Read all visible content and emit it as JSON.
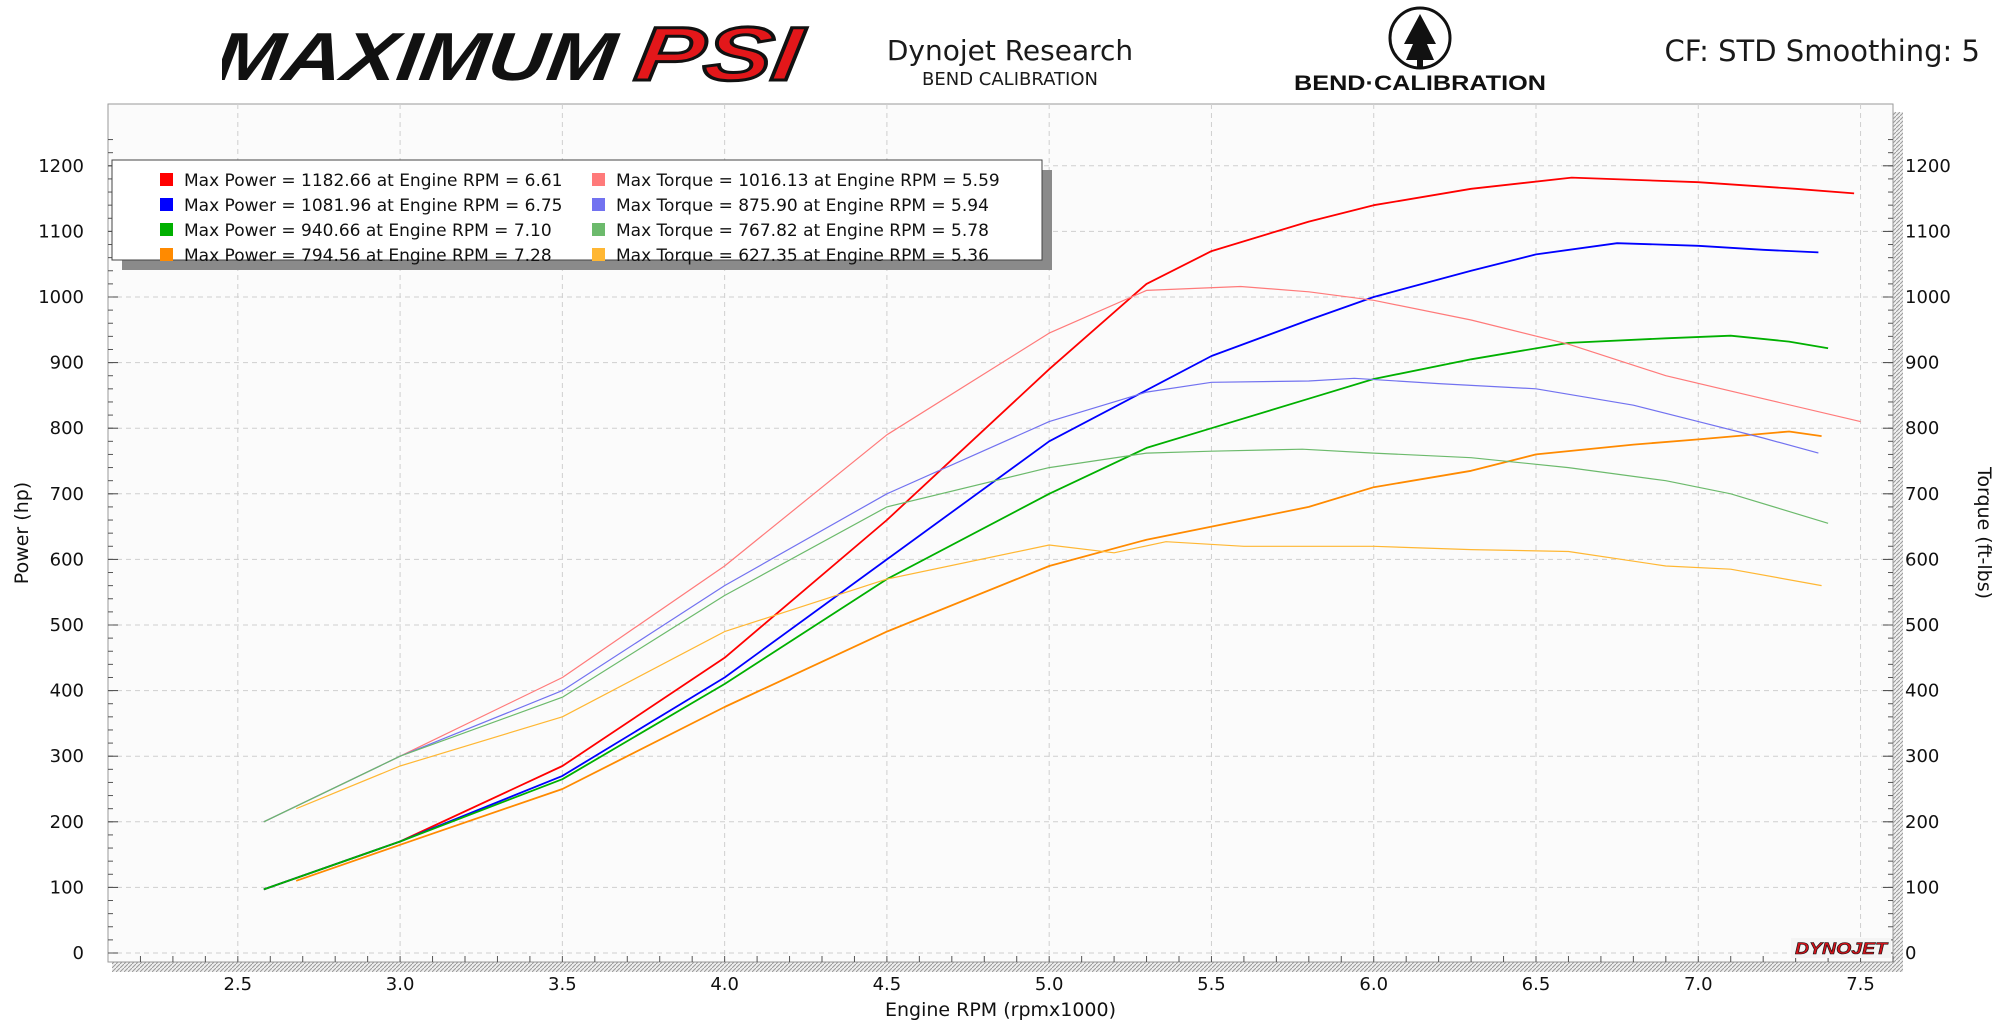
{
  "header": {
    "brand_left": "MAXIMUMPSI",
    "brand_left_a": "MAXIMUM",
    "brand_left_b": "PSI",
    "vendor_title": "Dynojet Research",
    "vendor_subtitle": "BEND CALIBRATION",
    "brand_right": "BEND·CALIBRATION",
    "cf_text": "CF: STD Smoothing: 5",
    "corner_logo": "DYNOJET"
  },
  "colors": {
    "red": "#ff0000",
    "blue": "#0000ff",
    "green": "#00b000",
    "orange": "#ff8a00",
    "light_red": "#ff7a7a",
    "light_blue": "#7272f0",
    "light_green": "#6cba6c",
    "light_orange": "#ffb733",
    "plot_bg": "#fbfbfb",
    "grid": "#cfcfcf"
  },
  "chart_data": {
    "type": "line",
    "xlabel": "Engine RPM (rpmx1000)",
    "ylabel_left": "Power (hp)",
    "ylabel_right": "Torque (ft-lbs)",
    "xlim": [
      2.1,
      7.6
    ],
    "ylim": [
      0,
      1200
    ],
    "x_ticks": [
      "2.5",
      "3.0",
      "3.5",
      "4.0",
      "4.5",
      "5.0",
      "5.5",
      "6.0",
      "6.5",
      "7.0",
      "7.5"
    ],
    "y_ticks": [
      "0",
      "100",
      "200",
      "300",
      "400",
      "500",
      "600",
      "700",
      "800",
      "900",
      "1000",
      "1100",
      "1200"
    ],
    "grid": true,
    "legend_position": "top-left",
    "legend": [
      {
        "text": "Max Power = 1182.66 at Engine RPM = 6.61",
        "color": "#ff0000"
      },
      {
        "text": "Max Power = 1081.96 at Engine RPM = 6.75",
        "color": "#0000ff"
      },
      {
        "text": "Max Power = 940.66 at Engine RPM = 7.10",
        "color": "#00b000"
      },
      {
        "text": "Max Power = 794.56 at Engine RPM = 7.28",
        "color": "#ff8a00"
      },
      {
        "text": "Max Torque = 1016.13 at Engine RPM = 5.59",
        "color": "#ff7a7a"
      },
      {
        "text": "Max Torque = 875.90 at Engine RPM = 5.94",
        "color": "#7272f0"
      },
      {
        "text": "Max Torque = 767.82 at Engine RPM = 5.78",
        "color": "#6cba6c"
      },
      {
        "text": "Max Torque = 627.35 at Engine RPM = 5.36",
        "color": "#ffb733"
      }
    ],
    "series": [
      {
        "kind": "power",
        "color": "#ff0000",
        "points": [
          [
            2.58,
            97
          ],
          [
            3.0,
            170
          ],
          [
            3.5,
            285
          ],
          [
            4.0,
            450
          ],
          [
            4.5,
            660
          ],
          [
            5.0,
            890
          ],
          [
            5.3,
            1020
          ],
          [
            5.5,
            1070
          ],
          [
            5.8,
            1115
          ],
          [
            6.0,
            1140
          ],
          [
            6.3,
            1165
          ],
          [
            6.61,
            1182
          ],
          [
            7.0,
            1175
          ],
          [
            7.3,
            1165
          ],
          [
            7.48,
            1158
          ]
        ]
      },
      {
        "kind": "power",
        "color": "#0000ff",
        "points": [
          [
            2.58,
            97
          ],
          [
            3.0,
            170
          ],
          [
            3.5,
            270
          ],
          [
            4.0,
            420
          ],
          [
            4.5,
            600
          ],
          [
            5.0,
            780
          ],
          [
            5.5,
            910
          ],
          [
            5.8,
            965
          ],
          [
            6.0,
            1000
          ],
          [
            6.3,
            1040
          ],
          [
            6.5,
            1065
          ],
          [
            6.75,
            1082
          ],
          [
            7.0,
            1078
          ],
          [
            7.2,
            1072
          ],
          [
            7.37,
            1068
          ]
        ]
      },
      {
        "kind": "power",
        "color": "#00b000",
        "points": [
          [
            2.58,
            97
          ],
          [
            3.0,
            170
          ],
          [
            3.5,
            265
          ],
          [
            4.0,
            410
          ],
          [
            4.5,
            570
          ],
          [
            5.0,
            700
          ],
          [
            5.3,
            770
          ],
          [
            5.5,
            800
          ],
          [
            5.8,
            845
          ],
          [
            6.0,
            875
          ],
          [
            6.3,
            905
          ],
          [
            6.6,
            930
          ],
          [
            6.9,
            937
          ],
          [
            7.1,
            941
          ],
          [
            7.28,
            932
          ],
          [
            7.4,
            922
          ]
        ]
      },
      {
        "kind": "power",
        "color": "#ff8a00",
        "points": [
          [
            2.68,
            110
          ],
          [
            3.0,
            165
          ],
          [
            3.5,
            250
          ],
          [
            4.0,
            375
          ],
          [
            4.5,
            490
          ],
          [
            5.0,
            590
          ],
          [
            5.3,
            630
          ],
          [
            5.5,
            650
          ],
          [
            5.8,
            680
          ],
          [
            6.0,
            710
          ],
          [
            6.3,
            735
          ],
          [
            6.5,
            760
          ],
          [
            6.8,
            775
          ],
          [
            7.0,
            783
          ],
          [
            7.28,
            795
          ],
          [
            7.38,
            788
          ]
        ]
      },
      {
        "kind": "torque",
        "color": "#ff7a7a",
        "points": [
          [
            2.58,
            200
          ],
          [
            3.0,
            300
          ],
          [
            3.5,
            420
          ],
          [
            4.0,
            590
          ],
          [
            4.5,
            790
          ],
          [
            5.0,
            945
          ],
          [
            5.3,
            1010
          ],
          [
            5.59,
            1016
          ],
          [
            5.8,
            1008
          ],
          [
            6.0,
            995
          ],
          [
            6.3,
            965
          ],
          [
            6.6,
            928
          ],
          [
            6.9,
            880
          ],
          [
            7.2,
            845
          ],
          [
            7.5,
            810
          ]
        ]
      },
      {
        "kind": "torque",
        "color": "#7272f0",
        "points": [
          [
            2.58,
            200
          ],
          [
            3.0,
            300
          ],
          [
            3.5,
            400
          ],
          [
            4.0,
            560
          ],
          [
            4.5,
            700
          ],
          [
            5.0,
            810
          ],
          [
            5.3,
            855
          ],
          [
            5.5,
            870
          ],
          [
            5.8,
            872
          ],
          [
            5.94,
            876
          ],
          [
            6.2,
            868
          ],
          [
            6.5,
            860
          ],
          [
            6.8,
            835
          ],
          [
            7.0,
            810
          ],
          [
            7.2,
            785
          ],
          [
            7.37,
            762
          ]
        ]
      },
      {
        "kind": "torque",
        "color": "#6cba6c",
        "points": [
          [
            2.58,
            200
          ],
          [
            3.0,
            300
          ],
          [
            3.5,
            390
          ],
          [
            4.0,
            545
          ],
          [
            4.5,
            680
          ],
          [
            5.0,
            740
          ],
          [
            5.3,
            762
          ],
          [
            5.5,
            765
          ],
          [
            5.78,
            768
          ],
          [
            6.0,
            762
          ],
          [
            6.3,
            755
          ],
          [
            6.6,
            740
          ],
          [
            6.9,
            720
          ],
          [
            7.1,
            700
          ],
          [
            7.4,
            655
          ]
        ]
      },
      {
        "kind": "torque",
        "color": "#ffb733",
        "points": [
          [
            2.68,
            220
          ],
          [
            3.0,
            285
          ],
          [
            3.5,
            360
          ],
          [
            4.0,
            490
          ],
          [
            4.5,
            570
          ],
          [
            5.0,
            622
          ],
          [
            5.2,
            610
          ],
          [
            5.36,
            627
          ],
          [
            5.6,
            620
          ],
          [
            6.0,
            620
          ],
          [
            6.3,
            615
          ],
          [
            6.6,
            612
          ],
          [
            6.9,
            590
          ],
          [
            7.1,
            585
          ],
          [
            7.38,
            560
          ]
        ]
      }
    ]
  }
}
